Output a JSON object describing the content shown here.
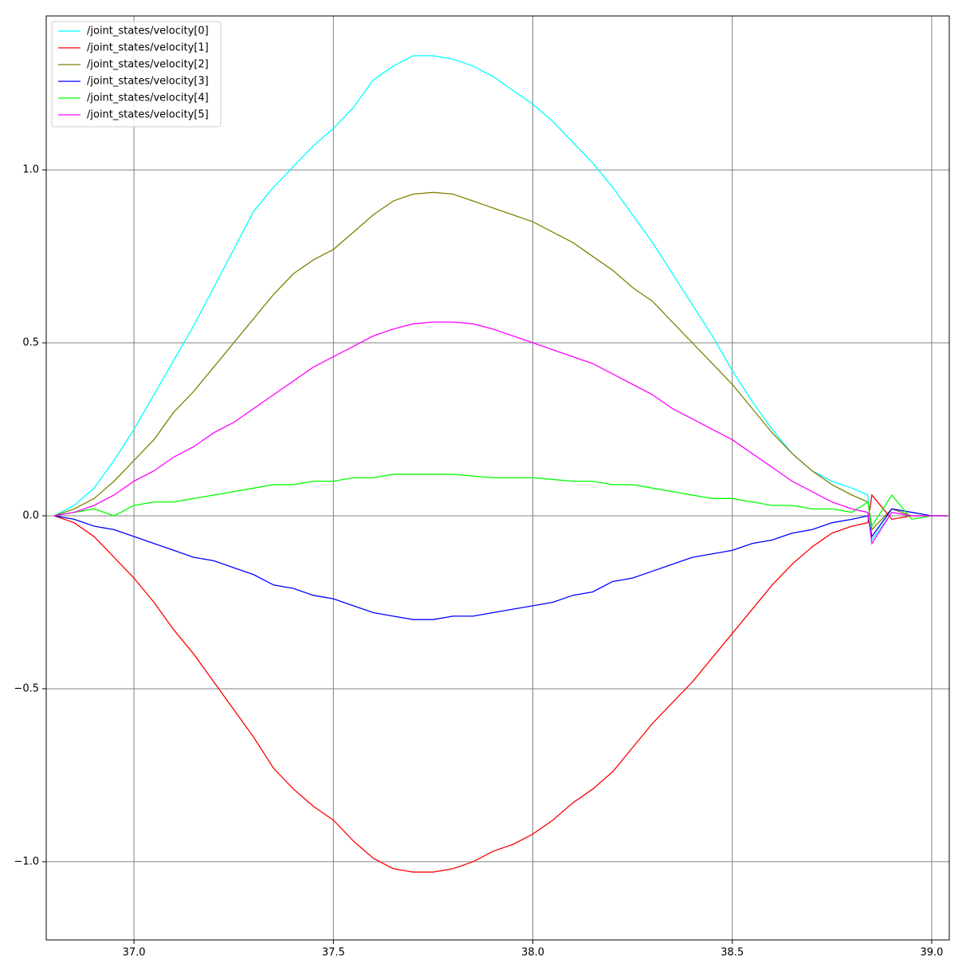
{
  "chart_data": {
    "type": "line",
    "x": [
      36.8,
      36.85,
      36.9,
      36.95,
      37.0,
      37.05,
      37.1,
      37.15,
      37.2,
      37.25,
      37.3,
      37.35,
      37.4,
      37.45,
      37.5,
      37.55,
      37.6,
      37.65,
      37.7,
      37.75,
      37.8,
      37.85,
      37.9,
      37.95,
      38.0,
      38.05,
      38.1,
      38.15,
      38.2,
      38.25,
      38.3,
      38.35,
      38.4,
      38.45,
      38.5,
      38.55,
      38.6,
      38.65,
      38.7,
      38.75,
      38.8,
      38.84,
      38.85,
      38.9,
      38.95,
      39.0,
      39.04
    ],
    "series": [
      {
        "name": "/joint_states/velocity[0]",
        "color": "#00ffff",
        "values": [
          0,
          0.03,
          0.08,
          0.16,
          0.25,
          0.35,
          0.45,
          0.55,
          0.66,
          0.77,
          0.88,
          0.95,
          1.01,
          1.07,
          1.12,
          1.18,
          1.26,
          1.3,
          1.33,
          1.33,
          1.32,
          1.3,
          1.27,
          1.23,
          1.19,
          1.14,
          1.08,
          1.02,
          0.95,
          0.87,
          0.79,
          0.7,
          0.61,
          0.52,
          0.42,
          0.33,
          0.25,
          0.18,
          0.13,
          0.1,
          0.08,
          0.06,
          -0.07,
          0.01,
          0,
          0,
          0
        ]
      },
      {
        "name": "/joint_states/velocity[1]",
        "color": "#ff0000",
        "values": [
          0,
          -0.02,
          -0.06,
          -0.12,
          -0.18,
          -0.25,
          -0.33,
          -0.4,
          -0.48,
          -0.56,
          -0.64,
          -0.73,
          -0.79,
          -0.84,
          -0.88,
          -0.94,
          -0.99,
          -1.02,
          -1.03,
          -1.03,
          -1.02,
          -1.0,
          -0.97,
          -0.95,
          -0.92,
          -0.88,
          -0.83,
          -0.79,
          -0.74,
          -0.67,
          -0.6,
          -0.54,
          -0.48,
          -0.41,
          -0.34,
          -0.27,
          -0.2,
          -0.14,
          -0.09,
          -0.05,
          -0.03,
          -0.02,
          0.06,
          -0.01,
          0,
          0,
          0
        ]
      },
      {
        "name": "/joint_states/velocity[2]",
        "color": "#808000",
        "values": [
          0,
          0.02,
          0.05,
          0.1,
          0.16,
          0.22,
          0.3,
          0.36,
          0.43,
          0.5,
          0.57,
          0.64,
          0.7,
          0.74,
          0.77,
          0.82,
          0.87,
          0.91,
          0.93,
          0.935,
          0.93,
          0.91,
          0.89,
          0.87,
          0.85,
          0.82,
          0.79,
          0.75,
          0.71,
          0.66,
          0.62,
          0.56,
          0.5,
          0.44,
          0.38,
          0.31,
          0.24,
          0.18,
          0.13,
          0.09,
          0.06,
          0.04,
          -0.04,
          0.02,
          0,
          0,
          0
        ]
      },
      {
        "name": "/joint_states/velocity[3]",
        "color": "#0000ff",
        "values": [
          0,
          -0.01,
          -0.03,
          -0.04,
          -0.06,
          -0.08,
          -0.1,
          -0.12,
          -0.13,
          -0.15,
          -0.17,
          -0.2,
          -0.21,
          -0.23,
          -0.24,
          -0.26,
          -0.28,
          -0.29,
          -0.3,
          -0.3,
          -0.29,
          -0.29,
          -0.28,
          -0.27,
          -0.26,
          -0.25,
          -0.23,
          -0.22,
          -0.19,
          -0.18,
          -0.16,
          -0.14,
          -0.12,
          -0.11,
          -0.1,
          -0.08,
          -0.07,
          -0.05,
          -0.04,
          -0.02,
          -0.01,
          0,
          -0.06,
          0.02,
          0.01,
          0,
          0
        ]
      },
      {
        "name": "/joint_states/velocity[4]",
        "color": "#00ff00",
        "values": [
          0,
          0.01,
          0.02,
          0,
          0.03,
          0.04,
          0.04,
          0.05,
          0.06,
          0.07,
          0.08,
          0.09,
          0.09,
          0.1,
          0.1,
          0.11,
          0.11,
          0.12,
          0.12,
          0.12,
          0.12,
          0.115,
          0.11,
          0.11,
          0.11,
          0.105,
          0.1,
          0.1,
          0.09,
          0.09,
          0.08,
          0.07,
          0.06,
          0.05,
          0.05,
          0.04,
          0.03,
          0.03,
          0.02,
          0.02,
          0.01,
          0.04,
          -0.03,
          0.06,
          -0.01,
          0,
          0
        ]
      },
      {
        "name": "/joint_states/velocity[5]",
        "color": "#ff00ff",
        "values": [
          0,
          0.01,
          0.03,
          0.06,
          0.1,
          0.13,
          0.17,
          0.2,
          0.24,
          0.27,
          0.31,
          0.35,
          0.39,
          0.43,
          0.46,
          0.49,
          0.52,
          0.54,
          0.555,
          0.56,
          0.56,
          0.555,
          0.54,
          0.52,
          0.5,
          0.48,
          0.46,
          0.44,
          0.41,
          0.38,
          0.35,
          0.31,
          0.28,
          0.25,
          0.22,
          0.18,
          0.14,
          0.1,
          0.07,
          0.04,
          0.02,
          0.01,
          -0.08,
          0.01,
          0,
          0,
          0
        ]
      }
    ],
    "xlim": [
      36.78,
      39.044
    ],
    "ylim": [
      -1.226,
      1.445
    ],
    "xticks": [
      {
        "value": 37,
        "label": "37.0"
      },
      37.5,
      {
        "value": 38,
        "label": "38.0"
      },
      38.5,
      {
        "value": 39,
        "label": "39.0"
      }
    ],
    "yticks": [
      {
        "value": -1,
        "label": "−1.0"
      },
      {
        "value": -0.5,
        "label": "−0.5"
      },
      {
        "value": 0,
        "label": "0.0"
      },
      0.5,
      {
        "value": 1,
        "label": "1.0"
      }
    ],
    "grid": true,
    "legend": "upper left"
  }
}
